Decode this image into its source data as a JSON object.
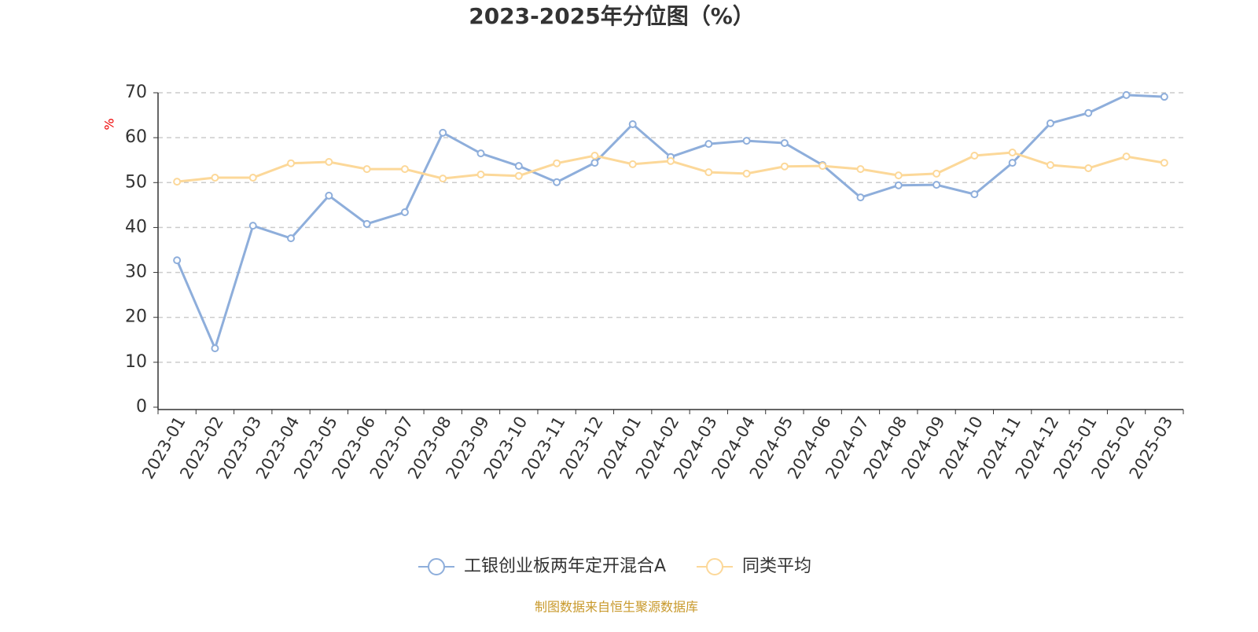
{
  "chart_data": {
    "type": "line",
    "title": "2023-2025年分位图（%）",
    "y_label": "%",
    "categories": [
      "2023-01",
      "2023-02",
      "2023-03",
      "2023-04",
      "2023-05",
      "2023-06",
      "2023-07",
      "2023-08",
      "2023-09",
      "2023-10",
      "2023-11",
      "2023-12",
      "2024-01",
      "2024-02",
      "2024-03",
      "2024-04",
      "2024-05",
      "2024-06",
      "2024-07",
      "2024-08",
      "2024-09",
      "2024-10",
      "2024-11",
      "2024-12",
      "2025-01",
      "2025-02",
      "2025-03"
    ],
    "series": [
      {
        "name": "工银创业板两年定开混合A",
        "color": "#8eaedb",
        "values": [
          32.7,
          13.1,
          40.4,
          37.6,
          47.1,
          40.8,
          43.4,
          61.1,
          56.5,
          53.7,
          50.1,
          54.4,
          63.0,
          55.7,
          58.6,
          59.3,
          58.8,
          53.9,
          46.7,
          49.4,
          49.5,
          47.4,
          54.4,
          63.2,
          65.5,
          69.5,
          69.1
        ]
      },
      {
        "name": "同类平均",
        "color": "#fcd899",
        "values": [
          50.2,
          51.1,
          51.1,
          54.3,
          54.6,
          53.0,
          53.0,
          50.9,
          51.8,
          51.5,
          54.3,
          56.0,
          54.1,
          54.8,
          52.3,
          52.0,
          53.6,
          53.7,
          53.0,
          51.6,
          52.0,
          56.0,
          56.7,
          53.9,
          53.2,
          55.8,
          54.4
        ]
      }
    ],
    "ylim": [
      0,
      70
    ],
    "yticks": [
      0,
      10,
      20,
      30,
      40,
      50,
      60,
      70
    ],
    "grid": true,
    "source": "制图数据来自恒生聚源数据库"
  }
}
